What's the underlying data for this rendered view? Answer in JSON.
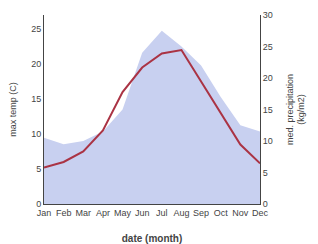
{
  "chart_data": {
    "type": "line",
    "categories": [
      "Jan",
      "Feb",
      "Mar",
      "Apr",
      "May",
      "Jun",
      "Jul",
      "Aug",
      "Sep",
      "Oct",
      "Nov",
      "Dec"
    ],
    "xlabel": "date (month)",
    "ylabel": "max temp (C)",
    "y2label": "med. precipitation\n(kg/m2)",
    "series": [
      {
        "type": "area",
        "axis": "y2",
        "color": "#c8d0f0",
        "values": [
          10.5,
          9.5,
          10.0,
          11.5,
          15.0,
          24.0,
          27.5,
          25.0,
          22.0,
          17.0,
          12.5,
          11.5
        ]
      },
      {
        "type": "line",
        "color": "#aa3344",
        "values": [
          5.2,
          6.0,
          7.5,
          10.5,
          16.0,
          19.5,
          21.5,
          22.0,
          17.5,
          13.0,
          8.5,
          5.8
        ]
      }
    ],
    "ylim": [
      0,
      27
    ],
    "yticks": [
      0,
      5,
      10,
      15,
      20,
      25
    ],
    "y2lim": [
      0,
      30
    ],
    "y2ticks": [
      0,
      5,
      10,
      15,
      20,
      25,
      30
    ],
    "grid": false
  }
}
